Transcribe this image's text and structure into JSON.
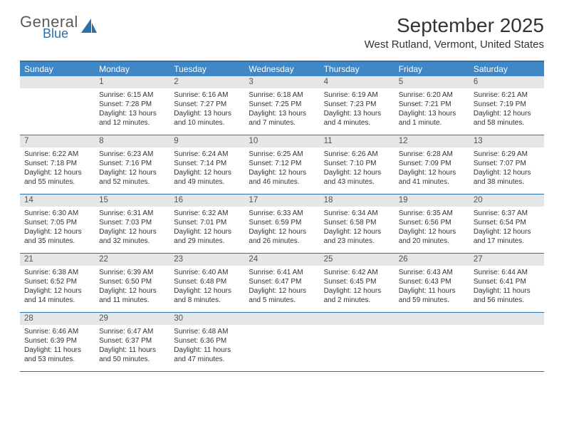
{
  "logo": {
    "general": "General",
    "blue": "Blue"
  },
  "title": "September 2025",
  "location": "West Rutland, Vermont, United States",
  "colors": {
    "header_bar": "#3f87c7",
    "border": "#2f6fa8",
    "daynum_bg": "#e5e6e7",
    "text": "#333333",
    "logo_gray": "#5a5a5a",
    "logo_blue": "#2f6fa8"
  },
  "dow": [
    "Sunday",
    "Monday",
    "Tuesday",
    "Wednesday",
    "Thursday",
    "Friday",
    "Saturday"
  ],
  "weeks": [
    [
      {
        "n": "",
        "sunrise": "",
        "sunset": "",
        "daylight": ""
      },
      {
        "n": "1",
        "sunrise": "Sunrise: 6:15 AM",
        "sunset": "Sunset: 7:28 PM",
        "daylight": "Daylight: 13 hours and 12 minutes."
      },
      {
        "n": "2",
        "sunrise": "Sunrise: 6:16 AM",
        "sunset": "Sunset: 7:27 PM",
        "daylight": "Daylight: 13 hours and 10 minutes."
      },
      {
        "n": "3",
        "sunrise": "Sunrise: 6:18 AM",
        "sunset": "Sunset: 7:25 PM",
        "daylight": "Daylight: 13 hours and 7 minutes."
      },
      {
        "n": "4",
        "sunrise": "Sunrise: 6:19 AM",
        "sunset": "Sunset: 7:23 PM",
        "daylight": "Daylight: 13 hours and 4 minutes."
      },
      {
        "n": "5",
        "sunrise": "Sunrise: 6:20 AM",
        "sunset": "Sunset: 7:21 PM",
        "daylight": "Daylight: 13 hours and 1 minute."
      },
      {
        "n": "6",
        "sunrise": "Sunrise: 6:21 AM",
        "sunset": "Sunset: 7:19 PM",
        "daylight": "Daylight: 12 hours and 58 minutes."
      }
    ],
    [
      {
        "n": "7",
        "sunrise": "Sunrise: 6:22 AM",
        "sunset": "Sunset: 7:18 PM",
        "daylight": "Daylight: 12 hours and 55 minutes."
      },
      {
        "n": "8",
        "sunrise": "Sunrise: 6:23 AM",
        "sunset": "Sunset: 7:16 PM",
        "daylight": "Daylight: 12 hours and 52 minutes."
      },
      {
        "n": "9",
        "sunrise": "Sunrise: 6:24 AM",
        "sunset": "Sunset: 7:14 PM",
        "daylight": "Daylight: 12 hours and 49 minutes."
      },
      {
        "n": "10",
        "sunrise": "Sunrise: 6:25 AM",
        "sunset": "Sunset: 7:12 PM",
        "daylight": "Daylight: 12 hours and 46 minutes."
      },
      {
        "n": "11",
        "sunrise": "Sunrise: 6:26 AM",
        "sunset": "Sunset: 7:10 PM",
        "daylight": "Daylight: 12 hours and 43 minutes."
      },
      {
        "n": "12",
        "sunrise": "Sunrise: 6:28 AM",
        "sunset": "Sunset: 7:09 PM",
        "daylight": "Daylight: 12 hours and 41 minutes."
      },
      {
        "n": "13",
        "sunrise": "Sunrise: 6:29 AM",
        "sunset": "Sunset: 7:07 PM",
        "daylight": "Daylight: 12 hours and 38 minutes."
      }
    ],
    [
      {
        "n": "14",
        "sunrise": "Sunrise: 6:30 AM",
        "sunset": "Sunset: 7:05 PM",
        "daylight": "Daylight: 12 hours and 35 minutes."
      },
      {
        "n": "15",
        "sunrise": "Sunrise: 6:31 AM",
        "sunset": "Sunset: 7:03 PM",
        "daylight": "Daylight: 12 hours and 32 minutes."
      },
      {
        "n": "16",
        "sunrise": "Sunrise: 6:32 AM",
        "sunset": "Sunset: 7:01 PM",
        "daylight": "Daylight: 12 hours and 29 minutes."
      },
      {
        "n": "17",
        "sunrise": "Sunrise: 6:33 AM",
        "sunset": "Sunset: 6:59 PM",
        "daylight": "Daylight: 12 hours and 26 minutes."
      },
      {
        "n": "18",
        "sunrise": "Sunrise: 6:34 AM",
        "sunset": "Sunset: 6:58 PM",
        "daylight": "Daylight: 12 hours and 23 minutes."
      },
      {
        "n": "19",
        "sunrise": "Sunrise: 6:35 AM",
        "sunset": "Sunset: 6:56 PM",
        "daylight": "Daylight: 12 hours and 20 minutes."
      },
      {
        "n": "20",
        "sunrise": "Sunrise: 6:37 AM",
        "sunset": "Sunset: 6:54 PM",
        "daylight": "Daylight: 12 hours and 17 minutes."
      }
    ],
    [
      {
        "n": "21",
        "sunrise": "Sunrise: 6:38 AM",
        "sunset": "Sunset: 6:52 PM",
        "daylight": "Daylight: 12 hours and 14 minutes."
      },
      {
        "n": "22",
        "sunrise": "Sunrise: 6:39 AM",
        "sunset": "Sunset: 6:50 PM",
        "daylight": "Daylight: 12 hours and 11 minutes."
      },
      {
        "n": "23",
        "sunrise": "Sunrise: 6:40 AM",
        "sunset": "Sunset: 6:48 PM",
        "daylight": "Daylight: 12 hours and 8 minutes."
      },
      {
        "n": "24",
        "sunrise": "Sunrise: 6:41 AM",
        "sunset": "Sunset: 6:47 PM",
        "daylight": "Daylight: 12 hours and 5 minutes."
      },
      {
        "n": "25",
        "sunrise": "Sunrise: 6:42 AM",
        "sunset": "Sunset: 6:45 PM",
        "daylight": "Daylight: 12 hours and 2 minutes."
      },
      {
        "n": "26",
        "sunrise": "Sunrise: 6:43 AM",
        "sunset": "Sunset: 6:43 PM",
        "daylight": "Daylight: 11 hours and 59 minutes."
      },
      {
        "n": "27",
        "sunrise": "Sunrise: 6:44 AM",
        "sunset": "Sunset: 6:41 PM",
        "daylight": "Daylight: 11 hours and 56 minutes."
      }
    ],
    [
      {
        "n": "28",
        "sunrise": "Sunrise: 6:46 AM",
        "sunset": "Sunset: 6:39 PM",
        "daylight": "Daylight: 11 hours and 53 minutes."
      },
      {
        "n": "29",
        "sunrise": "Sunrise: 6:47 AM",
        "sunset": "Sunset: 6:37 PM",
        "daylight": "Daylight: 11 hours and 50 minutes."
      },
      {
        "n": "30",
        "sunrise": "Sunrise: 6:48 AM",
        "sunset": "Sunset: 6:36 PM",
        "daylight": "Daylight: 11 hours and 47 minutes."
      },
      {
        "n": "",
        "sunrise": "",
        "sunset": "",
        "daylight": ""
      },
      {
        "n": "",
        "sunrise": "",
        "sunset": "",
        "daylight": ""
      },
      {
        "n": "",
        "sunrise": "",
        "sunset": "",
        "daylight": ""
      },
      {
        "n": "",
        "sunrise": "",
        "sunset": "",
        "daylight": ""
      }
    ]
  ]
}
